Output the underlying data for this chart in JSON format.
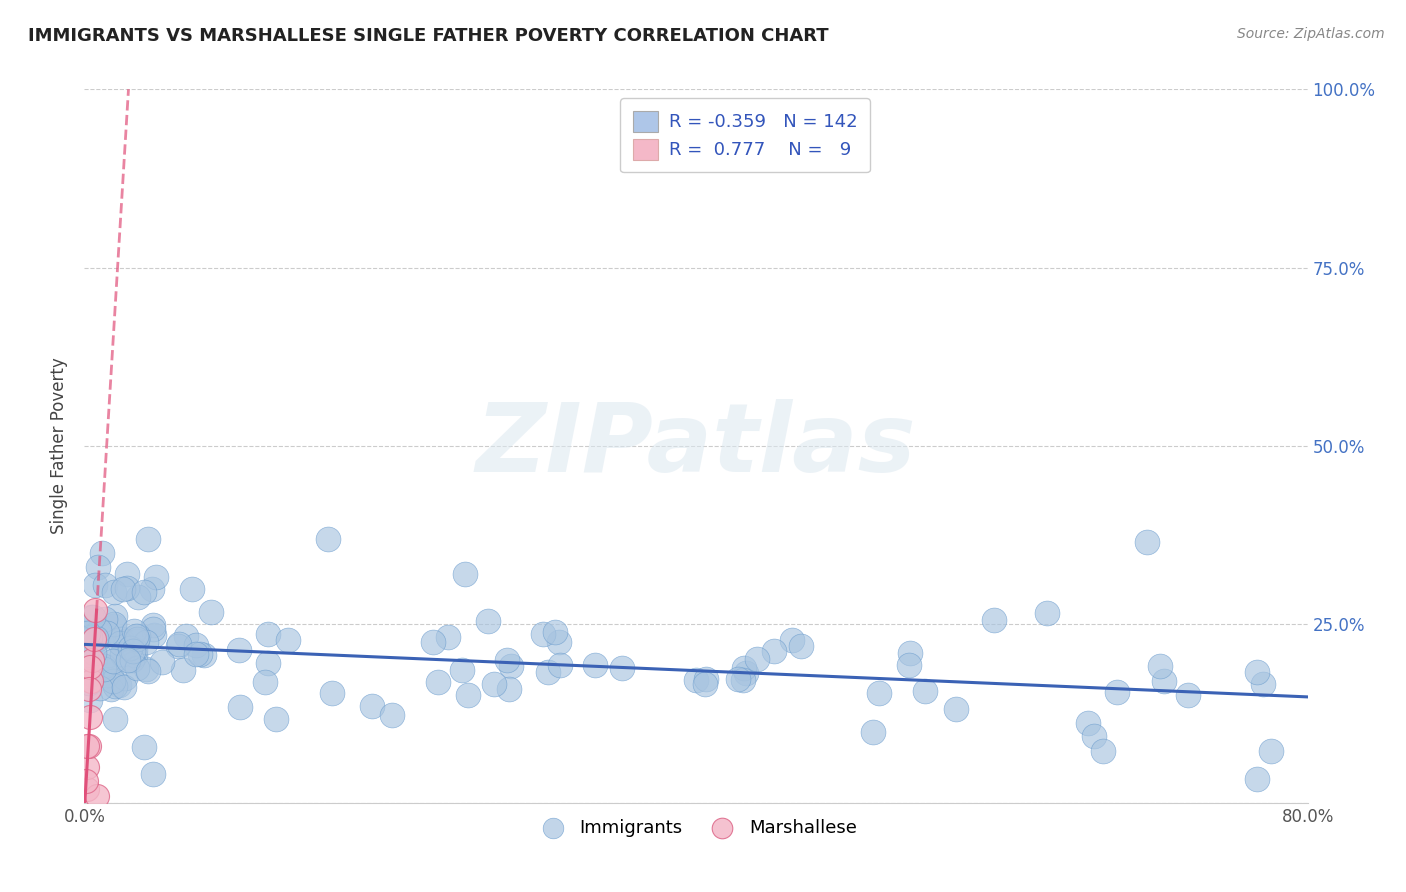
{
  "title": "IMMIGRANTS VS MARSHALLESE SINGLE FATHER POVERTY CORRELATION CHART",
  "source": "Source: ZipAtlas.com",
  "ylabel": "Single Father Poverty",
  "xlim": [
    0.0,
    0.8
  ],
  "ylim": [
    0.0,
    1.0
  ],
  "xtick_vals": [
    0.0,
    0.2,
    0.4,
    0.6,
    0.8
  ],
  "xticklabels": [
    "0.0%",
    "",
    "",
    "",
    "80.0%"
  ],
  "ytick_vals": [
    0.0,
    0.25,
    0.5,
    0.75,
    1.0
  ],
  "yticklabels_right": [
    "",
    "25.0%",
    "50.0%",
    "75.0%",
    "100.0%"
  ],
  "immigrants_color": "#a8c4e0",
  "immigrants_edge": "#6699cc",
  "marshallese_color": "#f4b8c8",
  "marshallese_edge": "#dd6688",
  "immigrants_line_color": "#3b62b5",
  "marshallese_line_color": "#e0507a",
  "legend_imm_color": "#aec6e8",
  "legend_marsh_color": "#f4b8c8",
  "R_immigrants": -0.359,
  "N_immigrants": 142,
  "R_marshallese": 0.777,
  "N_marshallese": 9,
  "imm_slope": -0.092,
  "imm_intercept": 0.222,
  "marsh_slope": 35.0,
  "marsh_intercept": -0.01,
  "watermark_text": "ZIPatlas",
  "bg_color": "#ffffff",
  "grid_color": "#cccccc"
}
